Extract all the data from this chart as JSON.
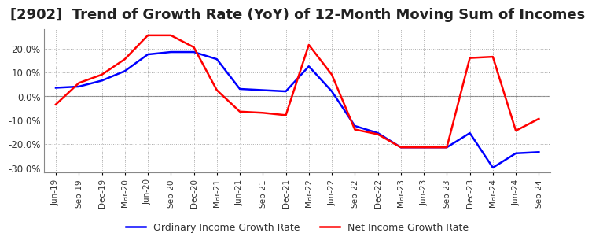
{
  "title": "[2902]  Trend of Growth Rate (YoY) of 12-Month Moving Sum of Incomes",
  "ylim": [
    -0.32,
    0.28
  ],
  "yticks": [
    -0.3,
    -0.2,
    -0.1,
    0.0,
    0.1,
    0.2
  ],
  "yticklabels": [
    "-30.0%",
    "-20.0%",
    "-10.0%",
    "0.0%",
    "10.0%",
    "20.0%"
  ],
  "x_labels": [
    "Jun-19",
    "Sep-19",
    "Dec-19",
    "Mar-20",
    "Jun-20",
    "Sep-20",
    "Dec-20",
    "Mar-21",
    "Jun-21",
    "Sep-21",
    "Dec-21",
    "Mar-22",
    "Jun-22",
    "Sep-22",
    "Dec-22",
    "Mar-23",
    "Jun-23",
    "Sep-23",
    "Dec-23",
    "Mar-24",
    "Jun-24",
    "Sep-24"
  ],
  "ordinary_income": [
    0.035,
    0.04,
    0.065,
    0.105,
    0.175,
    0.185,
    0.185,
    0.155,
    0.03,
    0.025,
    0.02,
    0.125,
    0.02,
    -0.125,
    -0.155,
    -0.215,
    -0.215,
    -0.215,
    -0.155,
    -0.3,
    -0.24,
    -0.235
  ],
  "net_income": [
    -0.035,
    0.055,
    0.09,
    0.155,
    0.255,
    0.255,
    0.205,
    0.025,
    -0.065,
    -0.07,
    -0.08,
    0.215,
    0.09,
    -0.14,
    -0.16,
    -0.215,
    -0.215,
    -0.215,
    0.16,
    0.165,
    -0.145,
    -0.095
  ],
  "ordinary_color": "#0000FF",
  "net_color": "#FF0000",
  "legend_labels": [
    "Ordinary Income Growth Rate",
    "Net Income Growth Rate"
  ],
  "background_color": "#FFFFFF",
  "grid_color": "#AAAAAA",
  "title_color": "#222222",
  "title_fontsize": 13
}
